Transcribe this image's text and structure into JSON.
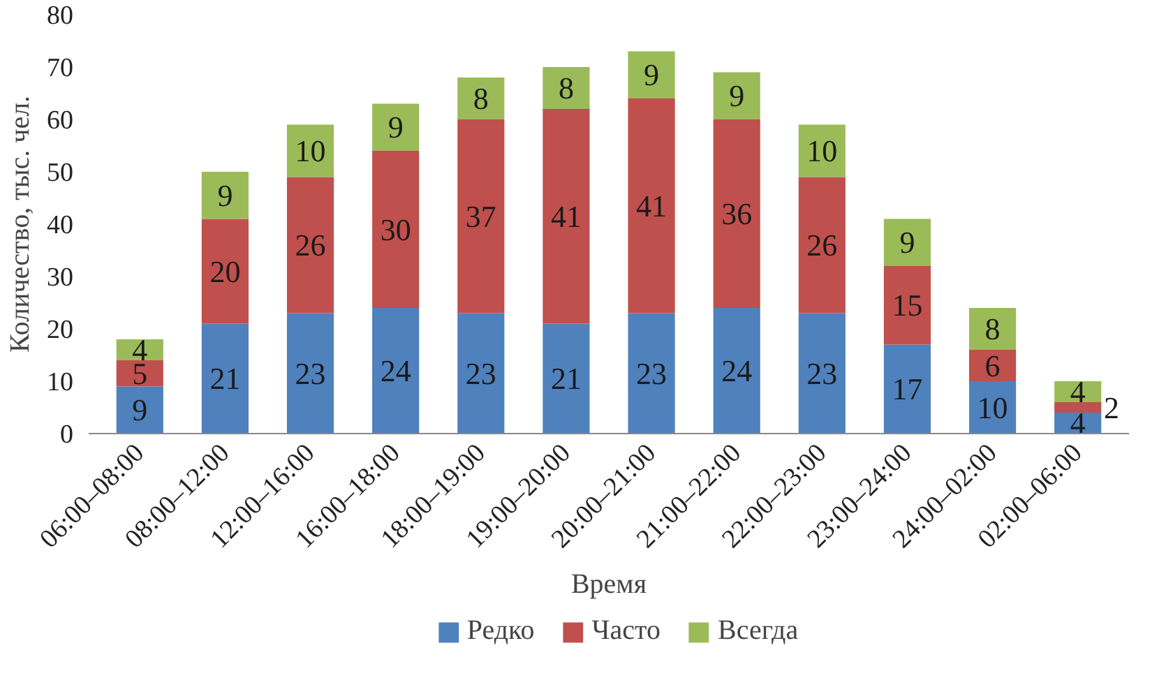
{
  "chart_data": {
    "type": "bar",
    "stacked": true,
    "xlabel": "Время",
    "ylabel": "Количество, тыс. чел.",
    "categories": [
      "06:00–08:00",
      "08:00–12:00",
      "12:00–16:00",
      "16:00–18:00",
      "18:00–19:00",
      "19:00–20:00",
      "20:00–21:00",
      "21:00–22:00",
      "22:00–23:00",
      "23:00–24:00",
      "24:00–02:00",
      "02:00–06:00"
    ],
    "series": [
      {
        "name": "Редко",
        "color": "#4f81bd",
        "values": [
          9,
          21,
          23,
          24,
          23,
          21,
          23,
          24,
          23,
          17,
          10,
          4
        ]
      },
      {
        "name": "Часто",
        "color": "#c0504d",
        "values": [
          5,
          20,
          26,
          30,
          37,
          41,
          41,
          36,
          26,
          15,
          6,
          2
        ]
      },
      {
        "name": "Всегда",
        "color": "#9bbb59",
        "values": [
          4,
          9,
          10,
          9,
          8,
          8,
          9,
          9,
          10,
          9,
          8,
          4
        ]
      }
    ],
    "ylim": [
      0,
      80
    ],
    "yticks": [
      0,
      10,
      20,
      30,
      40,
      50,
      60,
      70,
      80
    ],
    "grid": false,
    "legend": "bottom",
    "data_labels": true
  }
}
